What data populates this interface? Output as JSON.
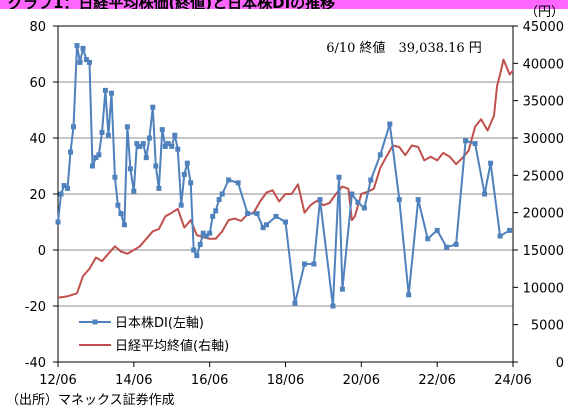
{
  "header": {
    "title": "グラフ1：日経平均株価(終値)と日本株DIの推移"
  },
  "source": "（出所）マネックス証券作成",
  "chart_data": {
    "type": "line",
    "x_tick_labels": [
      "12/06",
      "14/06",
      "16/06",
      "18/06",
      "20/06",
      "22/06",
      "24/06"
    ],
    "x_range": [
      2012.42,
      2024.42
    ],
    "left_axis": {
      "ticks": [
        "80",
        "60",
        "40",
        "20",
        "0",
        "-20",
        "-40"
      ],
      "range": [
        -40,
        80
      ],
      "negative_color": "#ff0000"
    },
    "right_axis": {
      "unit": "（円）",
      "ticks": [
        "45000",
        "40000",
        "35000",
        "30000",
        "25000",
        "20000",
        "15000",
        "10000",
        "5000",
        "0"
      ],
      "range": [
        0,
        45000
      ]
    },
    "annotation": "6/10 終値　39,038.16 円",
    "series": [
      {
        "name": "日本株DI(左軸)",
        "axis": "left",
        "color": "#4f81bd",
        "marker": "square",
        "x": [
          2012.42,
          2012.5,
          2012.58,
          2012.67,
          2012.75,
          2012.83,
          2012.92,
          2013.0,
          2013.08,
          2013.17,
          2013.25,
          2013.33,
          2013.42,
          2013.5,
          2013.58,
          2013.67,
          2013.75,
          2013.83,
          2013.92,
          2014.0,
          2014.08,
          2014.17,
          2014.25,
          2014.33,
          2014.42,
          2014.5,
          2014.58,
          2014.67,
          2014.75,
          2014.83,
          2014.92,
          2015.0,
          2015.08,
          2015.17,
          2015.25,
          2015.33,
          2015.42,
          2015.5,
          2015.58,
          2015.67,
          2015.75,
          2015.83,
          2015.92,
          2016.0,
          2016.08,
          2016.17,
          2016.25,
          2016.33,
          2016.42,
          2016.5,
          2016.58,
          2016.67,
          2016.75,
          2016.92,
          2017.17,
          2017.42,
          2017.67,
          2017.83,
          2017.92,
          2018.17,
          2018.42,
          2018.67,
          2018.92,
          2019.17,
          2019.33,
          2019.67,
          2019.83,
          2019.92,
          2020.17,
          2020.33,
          2020.5,
          2020.67,
          2020.92,
          2021.17,
          2021.42,
          2021.67,
          2021.92,
          2022.17,
          2022.42,
          2022.67,
          2022.92,
          2023.17,
          2023.42,
          2023.67,
          2023.83,
          2024.08,
          2024.33
        ],
        "values": [
          10,
          20,
          23,
          22,
          35,
          44,
          73,
          67,
          72,
          68,
          67,
          30,
          33,
          34,
          42,
          57,
          41,
          56,
          26,
          16,
          13,
          9,
          44,
          29,
          21,
          38,
          37,
          38,
          33,
          40,
          51,
          30,
          22,
          43,
          37,
          38,
          37,
          41,
          36,
          16,
          27,
          31,
          24,
          0,
          -2,
          2,
          6,
          5,
          6,
          12,
          14,
          18,
          20,
          25,
          24,
          13,
          13,
          8,
          9,
          12,
          10,
          -19,
          -5,
          -5,
          18,
          -20,
          26,
          -14,
          20,
          17,
          15,
          25,
          34,
          45,
          18,
          -16,
          18,
          4,
          7,
          1,
          2,
          39,
          38,
          20,
          31,
          5,
          7
        ]
      },
      {
        "name": "日経平均終値(右軸)",
        "axis": "right",
        "color": "#c0504d",
        "x": [
          2012.42,
          2012.67,
          2012.92,
          2013.08,
          2013.25,
          2013.42,
          2013.58,
          2013.75,
          2013.92,
          2014.08,
          2014.25,
          2014.42,
          2014.58,
          2014.75,
          2014.92,
          2015.08,
          2015.25,
          2015.42,
          2015.58,
          2015.75,
          2015.92,
          2016.08,
          2016.25,
          2016.42,
          2016.58,
          2016.75,
          2016.92,
          2017.08,
          2017.25,
          2017.42,
          2017.58,
          2017.75,
          2017.92,
          2018.08,
          2018.25,
          2018.42,
          2018.58,
          2018.75,
          2018.92,
          2019.08,
          2019.25,
          2019.42,
          2019.58,
          2019.75,
          2019.92,
          2020.08,
          2020.17,
          2020.25,
          2020.42,
          2020.58,
          2020.75,
          2020.92,
          2021.08,
          2021.25,
          2021.42,
          2021.58,
          2021.75,
          2021.92,
          2022.08,
          2022.25,
          2022.42,
          2022.58,
          2022.75,
          2022.92,
          2023.08,
          2023.25,
          2023.42,
          2023.58,
          2023.75,
          2023.92,
          2024.0,
          2024.08,
          2024.17,
          2024.25,
          2024.33,
          2024.42
        ],
        "values": [
          8600,
          8800,
          9200,
          11500,
          12500,
          14000,
          13500,
          14500,
          15500,
          14800,
          14500,
          15000,
          15500,
          16500,
          17500,
          17800,
          19500,
          20000,
          20500,
          18000,
          19000,
          17000,
          16700,
          16500,
          16500,
          17500,
          19000,
          19200,
          18900,
          19800,
          20000,
          21500,
          22700,
          23000,
          21500,
          22500,
          22500,
          23800,
          20000,
          21000,
          21600,
          21000,
          21300,
          22500,
          23500,
          23200,
          19000,
          19500,
          22500,
          22800,
          23200,
          26000,
          27500,
          29000,
          28800,
          27700,
          29000,
          28800,
          27000,
          27500,
          27000,
          28000,
          27500,
          26500,
          27300,
          28300,
          31500,
          32500,
          31000,
          33000,
          37000,
          38500,
          40500,
          39500,
          38500,
          39038
        ]
      }
    ]
  }
}
